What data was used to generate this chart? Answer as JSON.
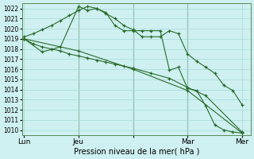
{
  "xlabel": "Pression niveau de la mer( hPa )",
  "bg_color": "#cef0f0",
  "grid_color": "#a8d8d8",
  "line_color": "#2a6a2a",
  "vline_color": "#5a8a5a",
  "ylim": [
    1009.5,
    1022.5
  ],
  "yticks": [
    1010,
    1011,
    1012,
    1013,
    1014,
    1015,
    1016,
    1017,
    1018,
    1019,
    1020,
    1021,
    1022
  ],
  "xtick_labels": [
    "Lun",
    "Jeu",
    "Mar",
    "Mer"
  ],
  "vline_x": [
    0.25,
    0.5,
    0.75
  ],
  "series": [
    {
      "x": [
        0.0,
        0.042,
        0.083,
        0.125,
        0.167,
        0.208,
        0.25,
        0.292,
        0.333,
        0.375,
        0.417,
        0.458,
        0.5,
        0.542,
        0.583,
        0.625,
        0.667,
        0.708,
        0.75,
        0.792,
        0.833,
        0.875,
        0.917,
        0.958,
        1.0
      ],
      "y": [
        1019.2,
        1019.5,
        1019.9,
        1020.3,
        1020.8,
        1021.3,
        1021.8,
        1022.2,
        1022.0,
        1021.5,
        1021.0,
        1020.3,
        1019.9,
        1019.2,
        1019.2,
        1019.2,
        1019.8,
        1019.5,
        1017.5,
        1016.8,
        1016.2,
        1015.6,
        1014.4,
        1013.9,
        1012.5
      ]
    },
    {
      "x": [
        0.0,
        0.042,
        0.083,
        0.125,
        0.167,
        0.208,
        0.25,
        0.292,
        0.333,
        0.375,
        0.417,
        0.458,
        0.5,
        0.583,
        0.667,
        0.75,
        0.833,
        1.0
      ],
      "y": [
        1019.0,
        1018.5,
        1018.2,
        1018.0,
        1017.8,
        1017.5,
        1017.3,
        1017.1,
        1016.9,
        1016.7,
        1016.5,
        1016.3,
        1016.1,
        1015.6,
        1015.1,
        1014.2,
        1013.4,
        1009.8
      ]
    },
    {
      "x": [
        0.0,
        0.25,
        0.5,
        0.75,
        1.0
      ],
      "y": [
        1019.0,
        1017.8,
        1016.0,
        1013.9,
        1009.7
      ]
    },
    {
      "x": [
        0.0,
        0.083,
        0.167,
        0.25,
        0.292,
        0.333,
        0.375,
        0.417,
        0.458,
        0.5,
        0.542,
        0.583,
        0.625,
        0.667,
        0.708,
        0.75,
        0.792,
        0.833,
        0.875,
        0.917,
        0.958,
        1.0
      ],
      "y": [
        1019.0,
        1017.7,
        1018.2,
        1022.2,
        1021.8,
        1022.0,
        1021.6,
        1020.3,
        1019.8,
        1019.8,
        1019.8,
        1019.8,
        1019.8,
        1015.9,
        1016.2,
        1014.1,
        1013.9,
        1012.4,
        1010.5,
        1010.0,
        1009.8,
        1009.7
      ]
    }
  ]
}
